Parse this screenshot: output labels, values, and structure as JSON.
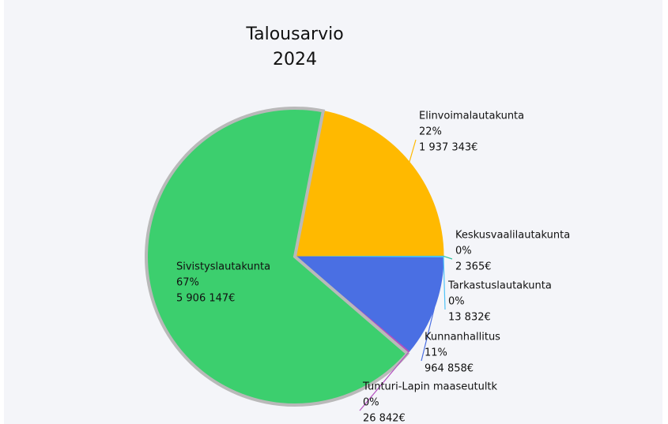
{
  "chart_data": {
    "type": "pie",
    "title": [
      "Talousarvio",
      "2024"
    ],
    "categories": [
      "Elinvoimalautakunta",
      "Keskusvaalilautakunta",
      "Tarkastuslautakunta",
      "Kunnanhallitus",
      "Tunturi-Lapin maaseutultk",
      "Sivistyslautakunta"
    ],
    "values": [
      1937343,
      2365,
      13832,
      964858,
      26842,
      5906147
    ],
    "value_labels": [
      "1 937 343€",
      "2 365€",
      "13 832€",
      "964 858€",
      "26 842€",
      "5 906 147€"
    ],
    "percent_labels": [
      "22%",
      "0%",
      "0%",
      "11%",
      "0%",
      "67%"
    ],
    "colors": [
      "#ffb900",
      "#2ec4a0",
      "#4fc3f7",
      "#4a6fe3",
      "#b44fc0",
      "#3ccf6e"
    ]
  }
}
